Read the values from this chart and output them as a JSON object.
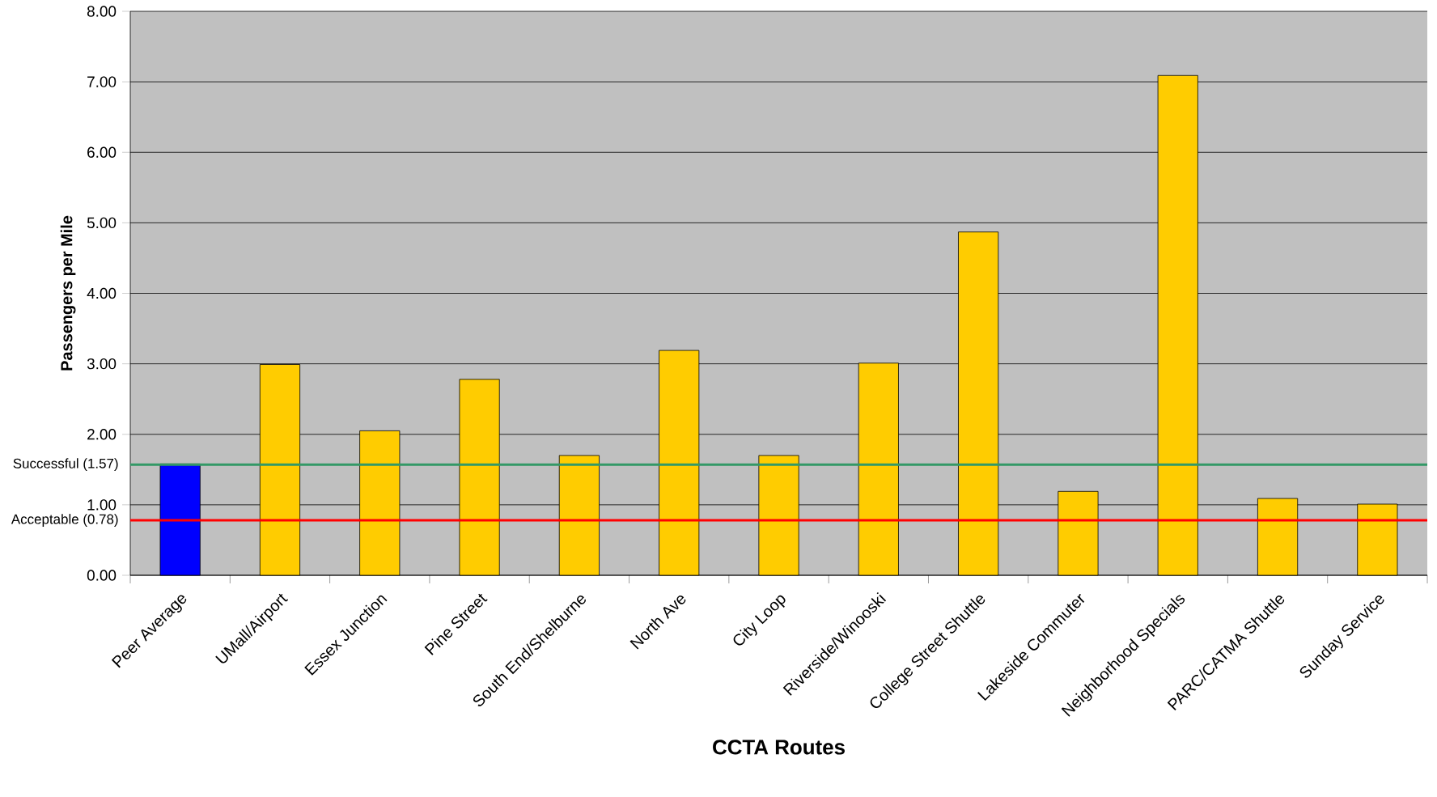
{
  "chart_data": {
    "type": "bar",
    "xlabel": "CCTA Routes",
    "ylabel": "Passengers per Mile",
    "categories": [
      "Peer Average",
      "UMall/Airport",
      "Essex Junction",
      "Pine Street",
      "South End/Shelburne",
      "North Ave",
      "City Loop",
      "Riverside/Winooski",
      "College Street Shuttle",
      "Lakeside Commuter",
      "Neighborhood Specials",
      "PARC/CATMA Shuttle",
      "Sunday Service"
    ],
    "values": [
      1.58,
      2.99,
      2.05,
      2.78,
      1.7,
      3.19,
      1.7,
      3.01,
      4.87,
      1.19,
      7.09,
      1.09,
      1.01
    ],
    "colors": [
      "#0000ff",
      "#ffcc00",
      "#ffcc00",
      "#ffcc00",
      "#ffcc00",
      "#ffcc00",
      "#ffcc00",
      "#ffcc00",
      "#ffcc00",
      "#ffcc00",
      "#ffcc00",
      "#ffcc00",
      "#ffcc00"
    ],
    "ylim": [
      0,
      8
    ],
    "yticks": [
      {
        "value": 0,
        "label": "0.00"
      },
      {
        "value": 1,
        "label": "1.00"
      },
      {
        "value": 2,
        "label": "2.00"
      },
      {
        "value": 3,
        "label": "3.00"
      },
      {
        "value": 4,
        "label": "4.00"
      },
      {
        "value": 5,
        "label": "5.00"
      },
      {
        "value": 6,
        "label": "6.00"
      },
      {
        "value": 7,
        "label": "7.00"
      },
      {
        "value": 8,
        "label": "8.00"
      }
    ],
    "grid": "y",
    "ref_lines": [
      {
        "axis": "y",
        "value": 1.57,
        "label": "Successful (1.57)",
        "color": "#339966"
      },
      {
        "axis": "y",
        "value": 0.78,
        "label": "Acceptable (0.78)",
        "color": "#ff0000"
      }
    ]
  }
}
